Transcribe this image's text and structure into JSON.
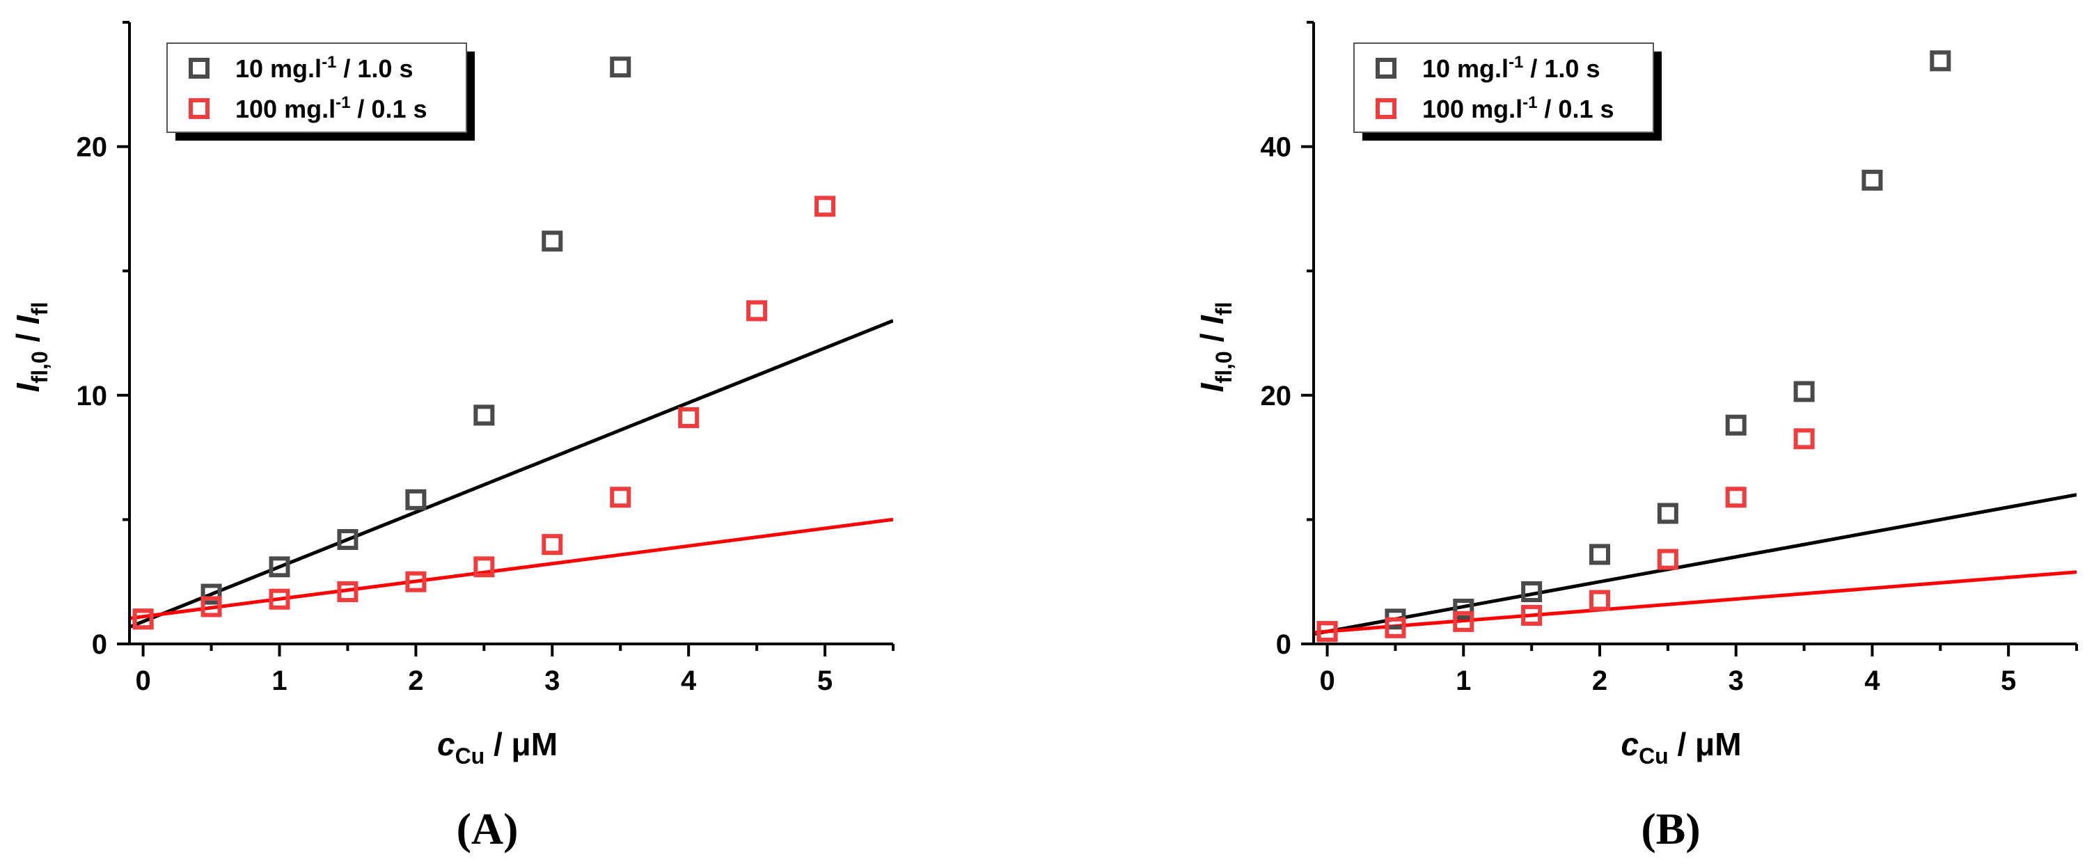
{
  "chart_data": [
    {
      "type": "scatter",
      "panel_label": "(A)",
      "xlabel": {
        "main": "c",
        "sub": "Cu",
        "rest": " / μM"
      },
      "ylabel": {
        "i1": "I",
        "sub1": "fl,0",
        "mid": " / ",
        "i2": "I",
        "sub2": "fl"
      },
      "xlim": [
        -0.1,
        5.5
      ],
      "ylim": [
        0,
        25
      ],
      "xticks": [
        0,
        1,
        2,
        3,
        4,
        5
      ],
      "yticks": [
        0,
        10,
        20
      ],
      "legend_position": "top-left",
      "series": [
        {
          "name": {
            "pre": "10 mg.l",
            "sup": "-1",
            "post": " / 1.0 s"
          },
          "color": "#4a4a4a",
          "marker": "open-square",
          "points": [
            [
              0,
              1.0
            ],
            [
              0.5,
              2.0
            ],
            [
              1.0,
              3.1
            ],
            [
              1.5,
              4.2
            ],
            [
              2.0,
              5.8
            ],
            [
              2.5,
              9.2
            ],
            [
              3.0,
              16.2
            ],
            [
              3.5,
              23.2
            ]
          ],
          "fit": {
            "color": "#000000",
            "x_range": [
              -0.1,
              5.5
            ],
            "intercept": 0.9,
            "slope": 2.2
          }
        },
        {
          "name": {
            "pre": "100 mg.l",
            "sup": "-1",
            "post": " / 0.1 s"
          },
          "color": "#f03c3c",
          "marker": "open-square",
          "points": [
            [
              0,
              1.0
            ],
            [
              0.5,
              1.5
            ],
            [
              1.0,
              1.8
            ],
            [
              1.5,
              2.1
            ],
            [
              2.0,
              2.5
            ],
            [
              2.5,
              3.1
            ],
            [
              3.0,
              4.0
            ],
            [
              3.5,
              5.9
            ],
            [
              4.0,
              9.1
            ],
            [
              4.5,
              13.4
            ],
            [
              5.0,
              17.6
            ]
          ],
          "fit": {
            "color": "#ff0000",
            "x_range": [
              -0.1,
              5.5
            ],
            "intercept": 1.1,
            "slope": 0.71
          }
        }
      ]
    },
    {
      "type": "scatter",
      "panel_label": "(B)",
      "xlabel": {
        "main": "c",
        "sub": "Cu",
        "rest": " / μM"
      },
      "ylabel": {
        "i1": "I",
        "sub1": "fl,0",
        "mid": " / ",
        "i2": "I",
        "sub2": "fl"
      },
      "xlim": [
        -0.1,
        5.5
      ],
      "ylim": [
        0,
        50
      ],
      "xticks": [
        0,
        1,
        2,
        3,
        4,
        5
      ],
      "yticks": [
        0,
        20,
        40
      ],
      "legend_position": "top-left",
      "series": [
        {
          "name": {
            "pre": "10 mg.l",
            "sup": "-1",
            "post": " / 1.0 s"
          },
          "color": "#4a4a4a",
          "marker": "open-square",
          "points": [
            [
              0,
              1.0
            ],
            [
              0.5,
              2.0
            ],
            [
              1.0,
              2.8
            ],
            [
              1.5,
              4.2
            ],
            [
              2.0,
              7.2
            ],
            [
              2.5,
              10.5
            ],
            [
              3.0,
              17.6
            ],
            [
              3.5,
              20.3
            ],
            [
              4.0,
              37.3
            ],
            [
              4.5,
              46.9
            ]
          ],
          "fit": {
            "color": "#000000",
            "x_range": [
              -0.1,
              5.5
            ],
            "intercept": 1.0,
            "slope": 2.0
          }
        },
        {
          "name": {
            "pre": "100 mg.l",
            "sup": "-1",
            "post": " / 0.1 s"
          },
          "color": "#f03c3c",
          "marker": "open-square",
          "points": [
            [
              0,
              1.0
            ],
            [
              0.5,
              1.3
            ],
            [
              1.0,
              1.8
            ],
            [
              1.5,
              2.3
            ],
            [
              2.0,
              3.5
            ],
            [
              2.5,
              6.8
            ],
            [
              3.0,
              11.8
            ],
            [
              3.5,
              16.5
            ]
          ],
          "fit": {
            "color": "#ff0000",
            "x_range": [
              -0.1,
              5.5
            ],
            "intercept": 1.0,
            "slope": 0.87
          }
        }
      ]
    }
  ]
}
